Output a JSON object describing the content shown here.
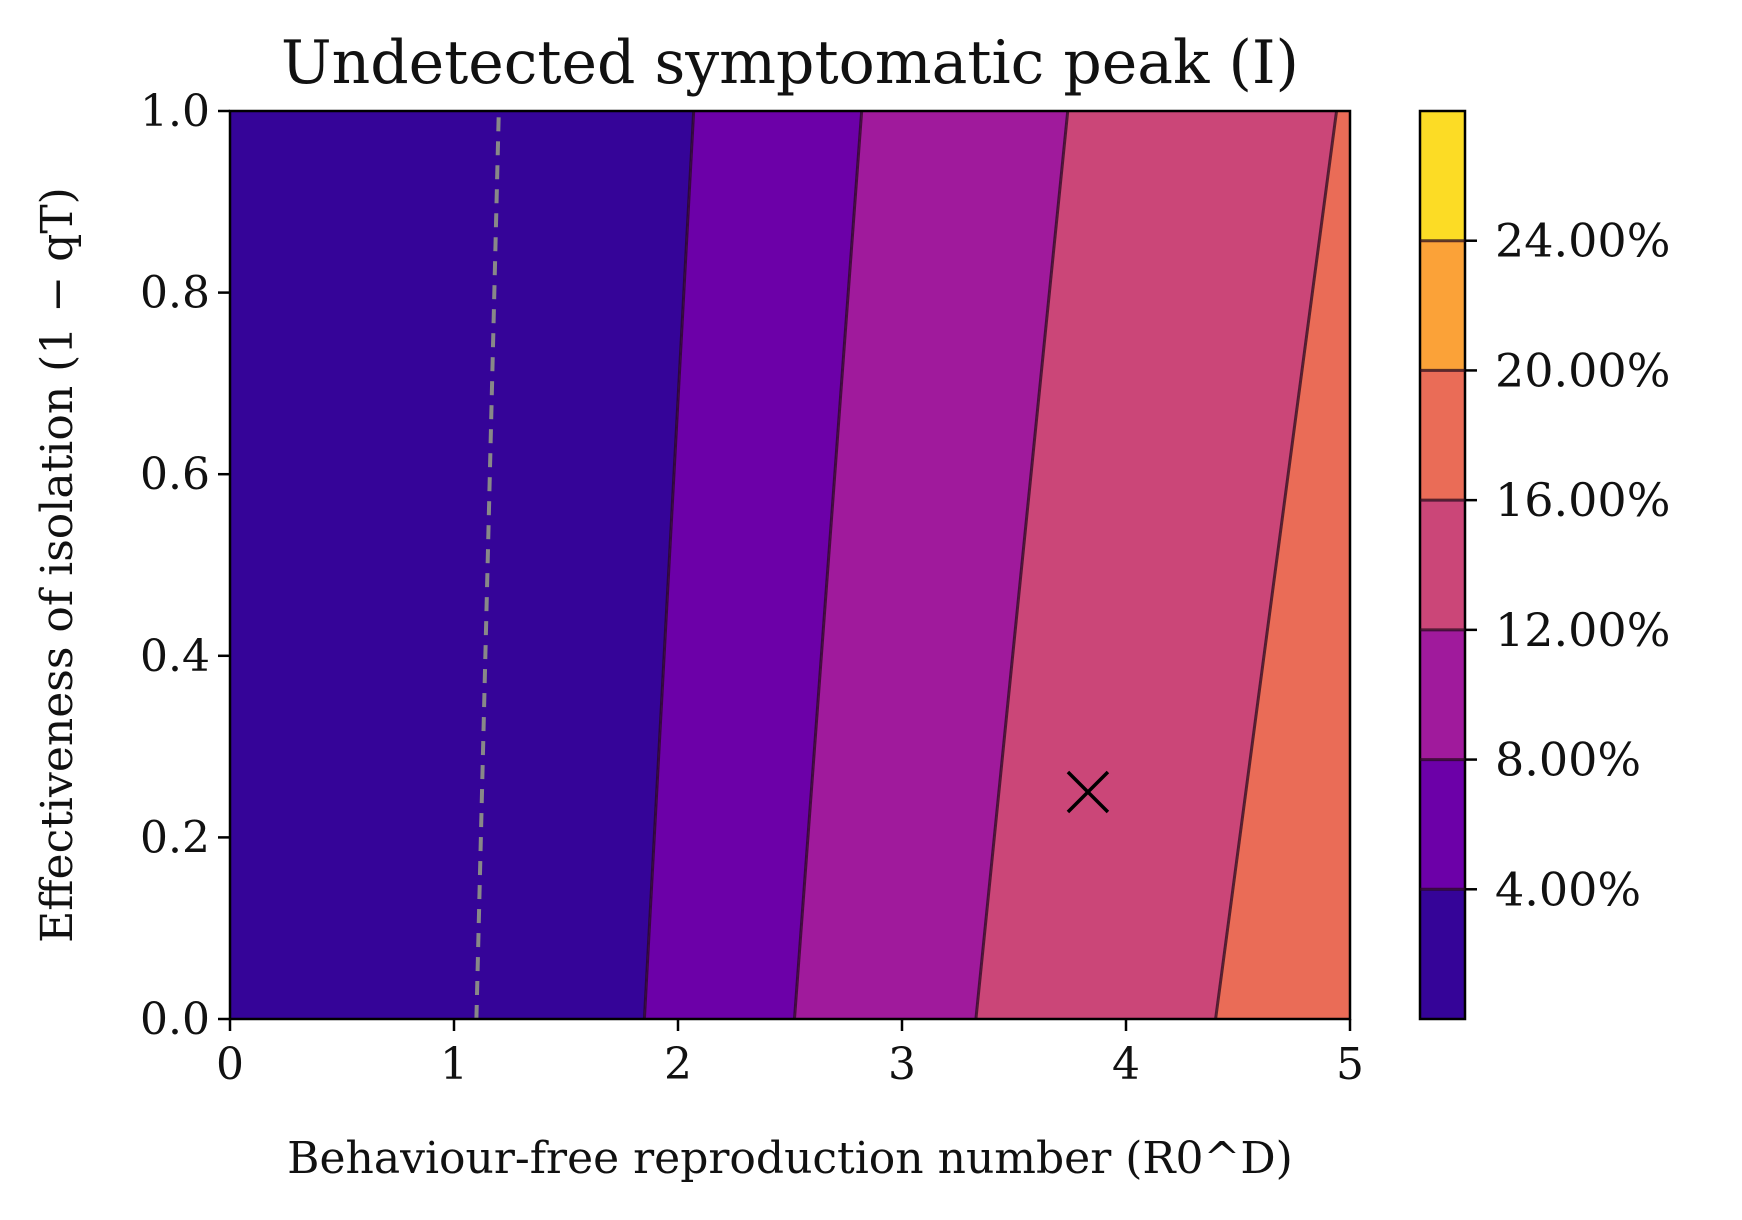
{
  "chart_data": {
    "type": "contourf",
    "title": "Undetected symptomatic peak (I)",
    "xlabel": "Behaviour-free reproduction number (R0^D)",
    "ylabel": "Effectiveness of isolation (1 − qT)",
    "xlim": [
      0,
      5
    ],
    "ylim": [
      0,
      1
    ],
    "x_ticks": [
      "0",
      "1",
      "2",
      "3",
      "4",
      "5"
    ],
    "y_ticks": [
      "0.0",
      "0.2",
      "0.4",
      "0.6",
      "0.8",
      "1.0"
    ],
    "colorbar": {
      "range": [
        0,
        28
      ],
      "levels": [
        4,
        8,
        12,
        16,
        20,
        24
      ],
      "tick_labels": [
        "4.00%",
        "8.00%",
        "12.00%",
        "16.00%",
        "20.00%",
        "24.00%"
      ],
      "colors": [
        "#350498",
        "#6c00a8",
        "#a01a9c",
        "#cb4678",
        "#ea6c57",
        "#fba238",
        "#fcdc25"
      ]
    },
    "contour_lines": [
      {
        "level": 4,
        "x_at_y0": 1.85,
        "x_at_y1": 2.07
      },
      {
        "level": 8,
        "x_at_y0": 2.52,
        "x_at_y1": 2.82
      },
      {
        "level": 12,
        "x_at_y0": 3.33,
        "x_at_y1": 3.74
      },
      {
        "level": 16,
        "x_at_y0": 4.4,
        "x_at_y1": 4.94
      }
    ],
    "threshold_line": {
      "style": "dashed",
      "color": "#888888",
      "x_at_y0": 1.1,
      "x_at_y1": 1.2
    },
    "marker": {
      "symbol": "x",
      "x": 3.83,
      "y": 0.25
    }
  }
}
